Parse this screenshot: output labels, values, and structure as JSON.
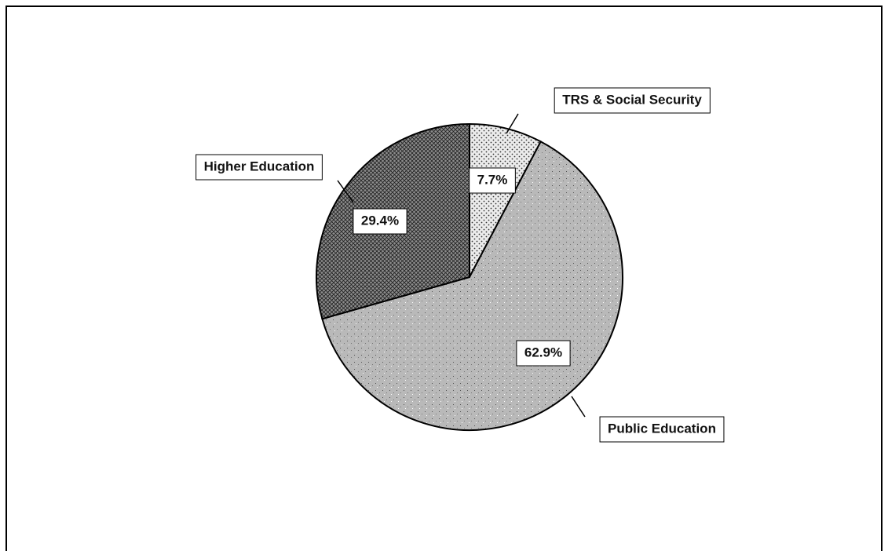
{
  "chart_data": {
    "type": "pie",
    "categories": [
      "TRS & Social Security",
      "Public Education",
      "Higher Education"
    ],
    "values": [
      7.7,
      62.9,
      29.4
    ],
    "value_labels": [
      "7.7%",
      "62.9%",
      "29.4%"
    ],
    "colors": [
      "#ececec",
      "#b9b9b9",
      "#8c8c8c"
    ]
  }
}
